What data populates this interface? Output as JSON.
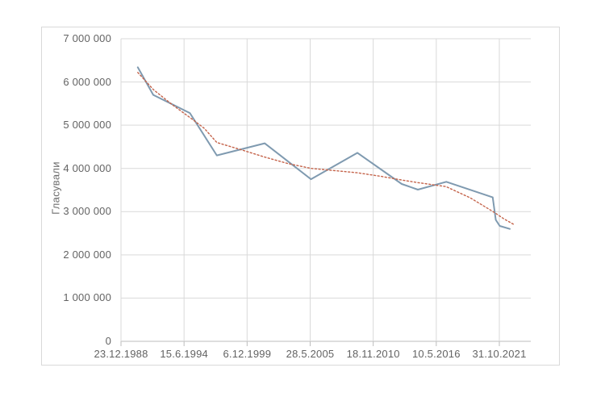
{
  "chart_data": {
    "type": "line",
    "title": "",
    "xlabel": "",
    "ylabel": "Гласували",
    "legend": false,
    "grid": true,
    "y_axis": {
      "min": 0,
      "max": 7000000,
      "tick_step": 1000000,
      "tick_labels": [
        "0",
        "1 000 000",
        "2 000 000",
        "3 000 000",
        "4 000 000",
        "5 000 000",
        "6 000 000",
        "7 000 000"
      ]
    },
    "x_axis": {
      "tick_labels": [
        "23.12.1988",
        "15.6.1994",
        "6.12.1999",
        "28.5.2005",
        "18.11.2010",
        "10.5.2016",
        "31.10.2021"
      ],
      "start_year": 1988.98,
      "tick_interval_years": 5.476,
      "tick_interval_days": 2000
    },
    "series": [
      {
        "id": "voters",
        "style": "solid",
        "color": "#7f9ab0",
        "points": [
          [
            1990.44,
            6340000
          ],
          [
            1991.78,
            5700000
          ],
          [
            1994.96,
            5280000
          ],
          [
            1997.3,
            4300000
          ],
          [
            2001.46,
            4580000
          ],
          [
            2005.48,
            3750000
          ],
          [
            2009.51,
            4360000
          ],
          [
            2013.36,
            3640000
          ],
          [
            2014.76,
            3510000
          ],
          [
            2017.23,
            3690000
          ],
          [
            2021.26,
            3330000
          ],
          [
            2021.53,
            2810000
          ],
          [
            2021.87,
            2670000
          ],
          [
            2022.75,
            2600000
          ]
        ]
      },
      {
        "id": "trend",
        "style": "dotted",
        "color": "#c4634a",
        "points": [
          [
            1990.44,
            6220000
          ],
          [
            1991.8,
            5820000
          ],
          [
            1993.4,
            5480000
          ],
          [
            1995.0,
            5170000
          ],
          [
            1996.2,
            4930000
          ],
          [
            1997.3,
            4600000
          ],
          [
            1999.3,
            4440000
          ],
          [
            2001.5,
            4260000
          ],
          [
            2003.5,
            4110000
          ],
          [
            2005.5,
            4000000
          ],
          [
            2007.5,
            3950000
          ],
          [
            2009.5,
            3900000
          ],
          [
            2011.5,
            3820000
          ],
          [
            2013.4,
            3730000
          ],
          [
            2014.8,
            3670000
          ],
          [
            2017.2,
            3580000
          ],
          [
            2019.3,
            3320000
          ],
          [
            2021.3,
            3000000
          ],
          [
            2022.2,
            2840000
          ],
          [
            2023.05,
            2710000
          ]
        ]
      }
    ]
  },
  "colors": {
    "background": "#ffffff",
    "frame": "#d9d9d9",
    "grid": "#d9d9d9",
    "axis": "#bdbdbd",
    "text": "#636363"
  }
}
